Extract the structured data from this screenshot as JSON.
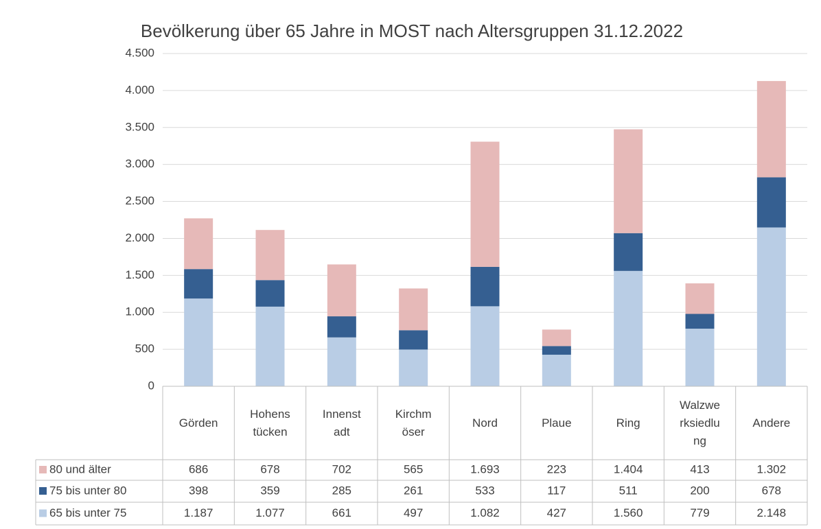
{
  "chart_data": {
    "type": "stacked_bar",
    "title": "Bevölkerung über 65 Jahre in MOST nach Altersgruppen 31.12.2022",
    "categories": [
      "Görden",
      "Hohenstücken",
      "Innenstadt",
      "Kirchmöser",
      "Nord",
      "Plaue",
      "Ring",
      "Walzwerksiedlung",
      "Andere"
    ],
    "series": [
      {
        "name": "65 bis unter 75",
        "color": "#b9cde5",
        "values": [
          1187,
          1077,
          661,
          497,
          1082,
          427,
          1560,
          779,
          2148
        ],
        "value_labels": [
          "1.187",
          "1.077",
          "661",
          "497",
          "1.082",
          "427",
          "1.560",
          "779",
          "2.148"
        ]
      },
      {
        "name": "75 bis unter 80",
        "color": "#355f91",
        "values": [
          398,
          359,
          285,
          261,
          533,
          117,
          511,
          200,
          678
        ],
        "value_labels": [
          "398",
          "359",
          "285",
          "261",
          "533",
          "117",
          "511",
          "200",
          "678"
        ]
      },
      {
        "name": "80 und älter",
        "color": "#e6b9b8",
        "values": [
          686,
          678,
          702,
          565,
          1693,
          223,
          1404,
          413,
          1302
        ],
        "value_labels": [
          "686",
          "678",
          "702",
          "565",
          "1.693",
          "223",
          "1.404",
          "413",
          "1.302"
        ]
      }
    ],
    "ylim": [
      0,
      4500
    ],
    "yticks": [
      0,
      500,
      {
        "value": 1000,
        "label": "1.000"
      },
      {
        "value": 1500,
        "label": "1.500"
      },
      {
        "value": 2000,
        "label": "2.000"
      },
      {
        "value": 2500,
        "label": "2.500"
      },
      {
        "value": 3000,
        "label": "3.000"
      },
      {
        "value": 3500,
        "label": "3.500"
      },
      {
        "value": 4000,
        "label": "4.000"
      },
      {
        "value": 4500,
        "label": "4.500"
      }
    ],
    "grid": true
  }
}
